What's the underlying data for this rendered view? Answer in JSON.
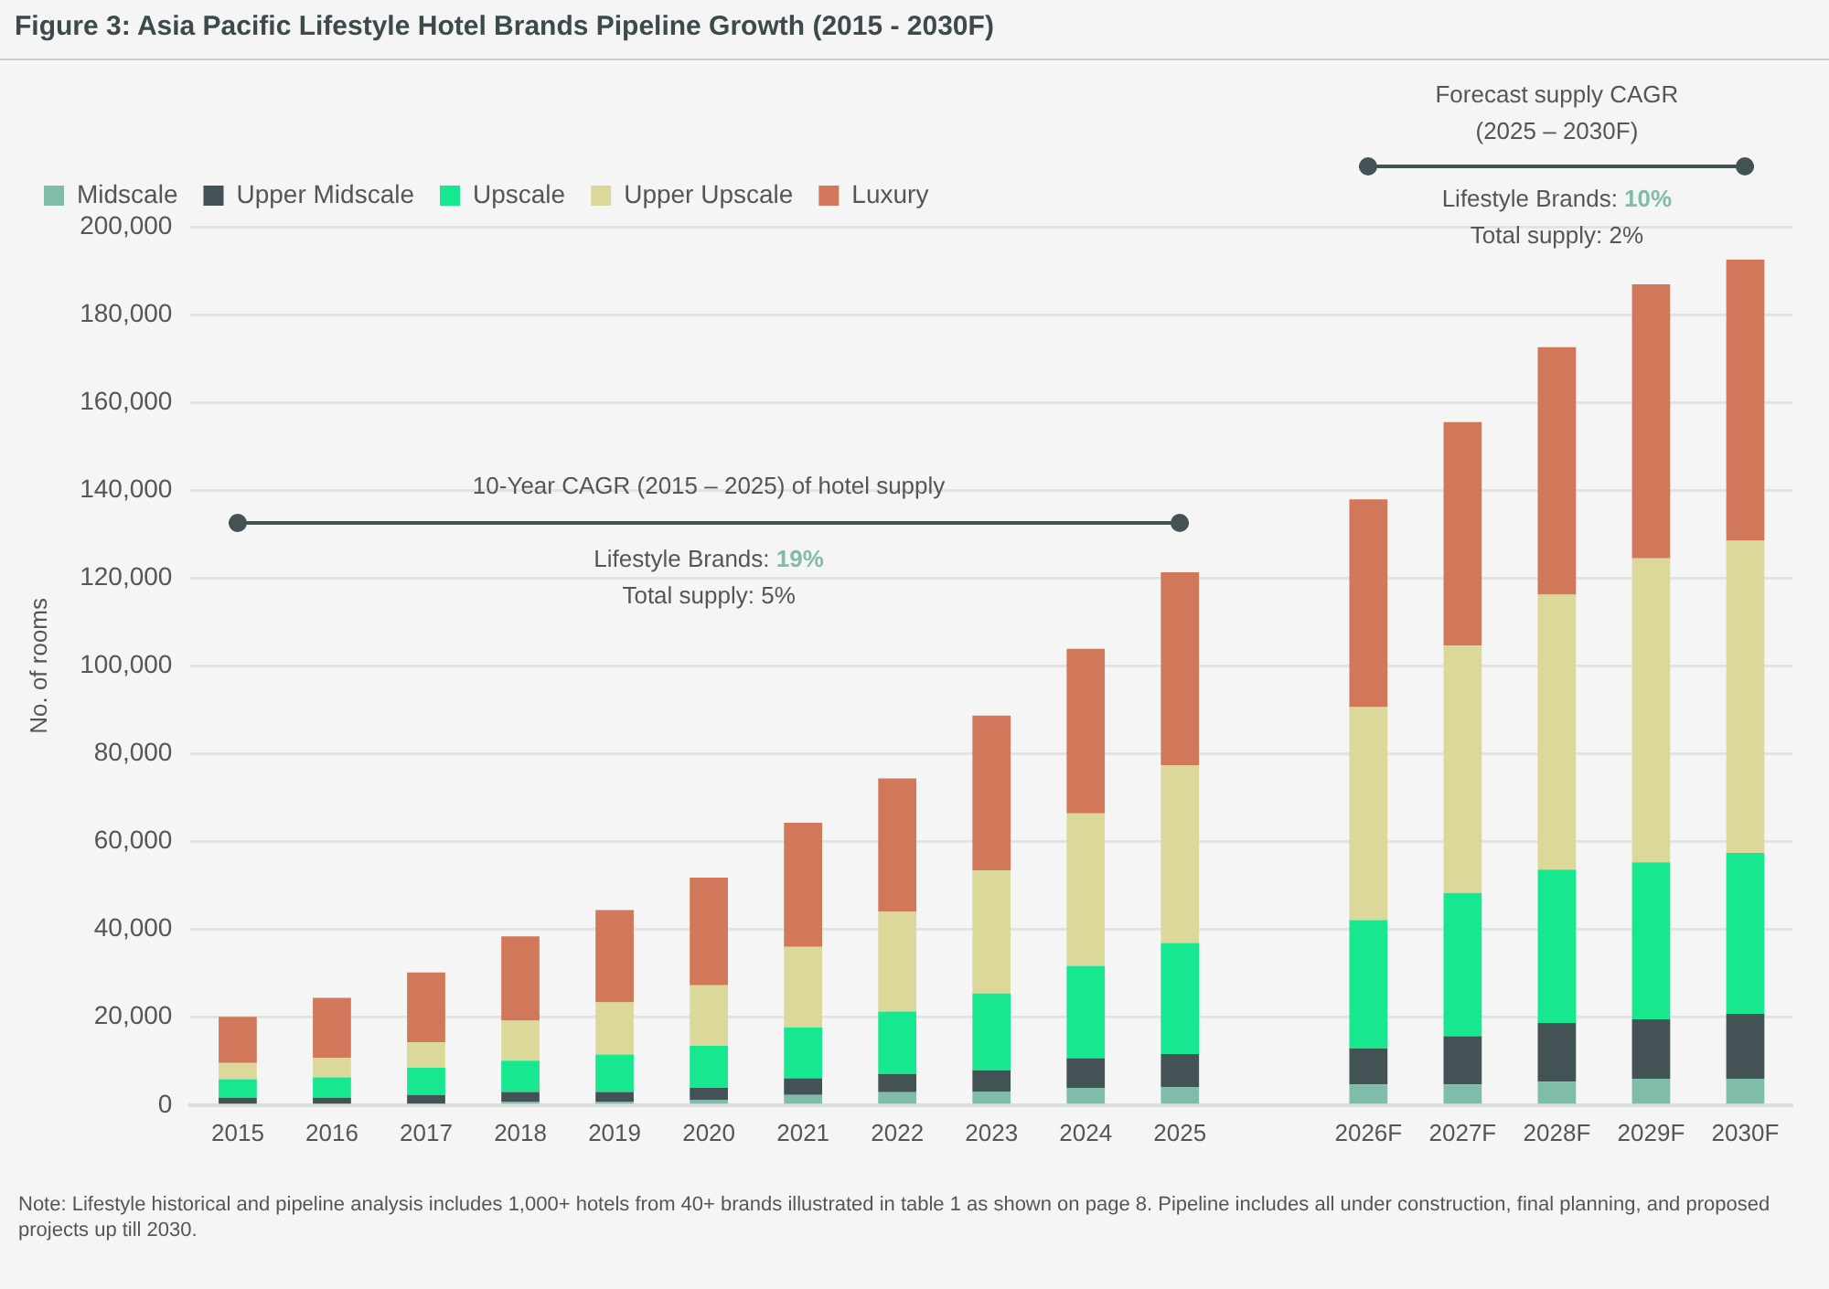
{
  "chart_data": {
    "type": "bar",
    "stacked": true,
    "title": "Figure 3: Asia Pacific Lifestyle Hotel Brands Pipeline Growth (2015 - 2030F)",
    "ylabel": "No. of rooms",
    "categories": [
      "2015",
      "2016",
      "2017",
      "2018",
      "2019",
      "2020",
      "2021",
      "2022",
      "2023",
      "2024",
      "2025",
      null,
      "2026F",
      "2027F",
      "2028F",
      "2029F",
      "2030F"
    ],
    "series": [
      {
        "name": "Midscale",
        "color": "#80bcaa",
        "values": [
          300,
          300,
          300,
          800,
          800,
          1100,
          2300,
          2900,
          3100,
          3900,
          4100,
          null,
          4700,
          4700,
          5300,
          6000,
          6000
        ]
      },
      {
        "name": "Upper Midscale",
        "color": "#435254",
        "values": [
          1400,
          1400,
          2000,
          2200,
          2200,
          2800,
          3800,
          4200,
          4800,
          6800,
          7500,
          null,
          8200,
          11000,
          13400,
          13500,
          14800
        ]
      },
      {
        "name": "Upscale",
        "color": "#17e88f",
        "values": [
          4200,
          4600,
          6200,
          7100,
          8500,
          9600,
          11600,
          14200,
          17500,
          21000,
          25300,
          null,
          29200,
          32600,
          34900,
          35800,
          36600
        ]
      },
      {
        "name": "Upper Upscale",
        "color": "#dbd89a",
        "values": [
          3700,
          4500,
          5800,
          9100,
          11900,
          13800,
          18300,
          22800,
          28000,
          34700,
          40500,
          null,
          48500,
          56300,
          62600,
          69200,
          71100
        ]
      },
      {
        "name": "Luxury",
        "color": "#d2785a",
        "values": [
          10500,
          13600,
          15900,
          19200,
          21000,
          24500,
          28300,
          30300,
          35300,
          37500,
          43900,
          null,
          47300,
          50900,
          56400,
          62400,
          64000
        ]
      }
    ],
    "ylim": [
      0,
      200000
    ],
    "yticks": [
      {
        "value": 0,
        "label": "0"
      },
      {
        "value": 20000,
        "label": "20,000"
      },
      {
        "value": 40000,
        "label": "40,000"
      },
      {
        "value": 60000,
        "label": "60,000"
      },
      {
        "value": 80000,
        "label": "80,000"
      },
      {
        "value": 100000,
        "label": "100,000"
      },
      {
        "value": 120000,
        "label": "120,000"
      },
      {
        "value": 140000,
        "label": "140,000"
      },
      {
        "value": 160000,
        "label": "160,000"
      },
      {
        "value": 180000,
        "label": "180,000"
      },
      {
        "value": 200000,
        "label": "200,000"
      }
    ],
    "grid": "y",
    "legend": "top left",
    "annotations": [
      "10-Year CAGR (2015 – 2025) of hotel supply",
      "Lifestyle Brands: 19%",
      "Total supply: 5%",
      "Forecast supply CAGR (2025 – 2030F)",
      "Lifestyle Brands: 10%",
      "Total supply: 2%",
      "Note: Lifestyle historical and pipeline analysis includes 1,000+ hotels from 40+ brands illustrated in table 1 as shown on page 8. Pipeline includes all under construction, final planning, and proposed projects up till 2030."
    ]
  }
}
